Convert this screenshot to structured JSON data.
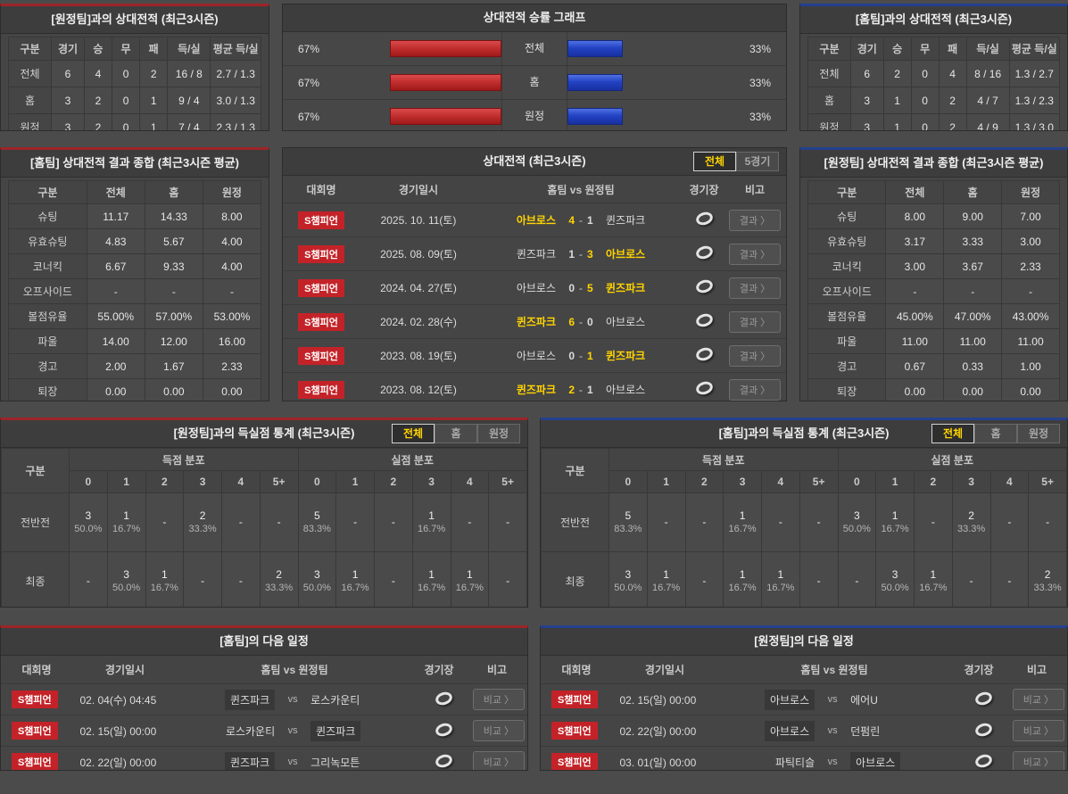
{
  "colors": {
    "accent_red": "#c22f2f",
    "accent_blue": "#2343c4",
    "badge_red": "#c32328",
    "highlight_yellow": "#ffd400"
  },
  "h2h_vs_away": {
    "title": "[원정팀]과의 상대전적 (최근3시즌)",
    "columns": [
      "구분",
      "경기",
      "승",
      "무",
      "패",
      "득/실",
      "평균 득/실"
    ],
    "rows": [
      {
        "label": "전체",
        "values": [
          "6",
          "4",
          "0",
          "2",
          "16 / 8",
          "2.7 / 1.3"
        ]
      },
      {
        "label": "홈",
        "values": [
          "3",
          "2",
          "0",
          "1",
          "9 / 4",
          "3.0 / 1.3"
        ]
      },
      {
        "label": "원정",
        "values": [
          "3",
          "2",
          "0",
          "1",
          "7 / 4",
          "2.3 / 1.3"
        ]
      }
    ]
  },
  "winrate": {
    "title": "상대전적 승률 그래프",
    "rows": [
      {
        "label": "전체",
        "left_pct": "67%",
        "right_pct": "33%",
        "left_width": 67,
        "right_width": 33
      },
      {
        "label": "홈",
        "left_pct": "67%",
        "right_pct": "33%",
        "left_width": 67,
        "right_width": 33
      },
      {
        "label": "원정",
        "left_pct": "67%",
        "right_pct": "33%",
        "left_width": 67,
        "right_width": 33
      }
    ]
  },
  "h2h_vs_home": {
    "title": "[홈팀]과의 상대전적 (최근3시즌)",
    "columns": [
      "구분",
      "경기",
      "승",
      "무",
      "패",
      "득/실",
      "평균 득/실"
    ],
    "rows": [
      {
        "label": "전체",
        "values": [
          "6",
          "2",
          "0",
          "4",
          "8 / 16",
          "1.3 / 2.7"
        ]
      },
      {
        "label": "홈",
        "values": [
          "3",
          "1",
          "0",
          "2",
          "4 / 7",
          "1.3 / 2.3"
        ]
      },
      {
        "label": "원정",
        "values": [
          "3",
          "1",
          "0",
          "2",
          "4 / 9",
          "1.3 / 3.0"
        ]
      }
    ]
  },
  "home_summary": {
    "title": "[홈팀] 상대전적 결과 종합 (최근3시즌 평균)",
    "columns": [
      "구분",
      "전체",
      "홈",
      "원정"
    ],
    "rows": [
      {
        "label": "슈팅",
        "values": [
          "11.17",
          "14.33",
          "8.00"
        ]
      },
      {
        "label": "유효슈팅",
        "values": [
          "4.83",
          "5.67",
          "4.00"
        ]
      },
      {
        "label": "코너킥",
        "values": [
          "6.67",
          "9.33",
          "4.00"
        ]
      },
      {
        "label": "오프사이드",
        "values": [
          "-",
          "-",
          "-"
        ]
      },
      {
        "label": "볼점유율",
        "values": [
          "55.00%",
          "57.00%",
          "53.00%"
        ]
      },
      {
        "label": "파울",
        "values": [
          "14.00",
          "12.00",
          "16.00"
        ]
      },
      {
        "label": "경고",
        "values": [
          "2.00",
          "1.67",
          "2.33"
        ]
      },
      {
        "label": "퇴장",
        "values": [
          "0.00",
          "0.00",
          "0.00"
        ]
      }
    ]
  },
  "away_summary": {
    "title": "[원정팀] 상대전적 결과 종합 (최근3시즌 평균)",
    "columns": [
      "구분",
      "전체",
      "홈",
      "원정"
    ],
    "rows": [
      {
        "label": "슈팅",
        "values": [
          "8.00",
          "9.00",
          "7.00"
        ]
      },
      {
        "label": "유효슈팅",
        "values": [
          "3.17",
          "3.33",
          "3.00"
        ]
      },
      {
        "label": "코너킥",
        "values": [
          "3.00",
          "3.67",
          "2.33"
        ]
      },
      {
        "label": "오프사이드",
        "values": [
          "-",
          "-",
          "-"
        ]
      },
      {
        "label": "볼점유율",
        "values": [
          "45.00%",
          "47.00%",
          "43.00%"
        ]
      },
      {
        "label": "파울",
        "values": [
          "11.00",
          "11.00",
          "11.00"
        ]
      },
      {
        "label": "경고",
        "values": [
          "0.67",
          "0.33",
          "1.00"
        ]
      },
      {
        "label": "퇴장",
        "values": [
          "0.00",
          "0.00",
          "0.00"
        ]
      }
    ]
  },
  "matches": {
    "title": "상대전적 (최근3시즌)",
    "filters": [
      "전체",
      "5경기"
    ],
    "active_filter": "전체",
    "columns": {
      "league": "대회명",
      "datetime": "경기일시",
      "teams": "홈팀  vs  원정팀",
      "stadium": "경기장",
      "note": "비고"
    },
    "result_button": "결과 〉",
    "sep": "-",
    "rows": [
      {
        "league": "S챔피언",
        "date": "2025. 10. 11(토)",
        "home": "아브로스",
        "hs": "4",
        "as": "1",
        "away": "퀸즈파크",
        "winner": "home"
      },
      {
        "league": "S챔피언",
        "date": "2025. 08. 09(토)",
        "home": "퀸즈파크",
        "hs": "1",
        "as": "3",
        "away": "아브로스",
        "winner": "away"
      },
      {
        "league": "S챔피언",
        "date": "2024. 04. 27(토)",
        "home": "아브로스",
        "hs": "0",
        "as": "5",
        "away": "퀸즈파크",
        "winner": "away"
      },
      {
        "league": "S챔피언",
        "date": "2024. 02. 28(수)",
        "home": "퀸즈파크",
        "hs": "6",
        "as": "0",
        "away": "아브로스",
        "winner": "home"
      },
      {
        "league": "S챔피언",
        "date": "2023. 08. 19(토)",
        "home": "아브로스",
        "hs": "0",
        "as": "1",
        "away": "퀸즈파크",
        "winner": "away"
      },
      {
        "league": "S챔피언",
        "date": "2023. 08. 12(토)",
        "home": "퀸즈파크",
        "hs": "2",
        "as": "1",
        "away": "아브로스",
        "winner": "home"
      }
    ]
  },
  "goals_vs_away": {
    "title": "[원정팀]과의 득실점 통계 (최근3시즌)",
    "filters": [
      "전체",
      "홈",
      "원정"
    ],
    "active_filter": "전체",
    "row_header": "구분",
    "group_scored": "득점 분포",
    "group_conceded": "실점 분포",
    "bins": [
      "0",
      "1",
      "2",
      "3",
      "4",
      "5+"
    ],
    "rows": [
      {
        "label": "전반전",
        "scored": [
          [
            "3",
            "50.0%"
          ],
          [
            "1",
            "16.7%"
          ],
          [
            "-",
            ""
          ],
          [
            "2",
            "33.3%"
          ],
          [
            "-",
            ""
          ],
          [
            "-",
            ""
          ]
        ],
        "conceded": [
          [
            "5",
            "83.3%"
          ],
          [
            "-",
            ""
          ],
          [
            "-",
            ""
          ],
          [
            "1",
            "16.7%"
          ],
          [
            "-",
            ""
          ],
          [
            "-",
            ""
          ]
        ]
      },
      {
        "label": "최종",
        "scored": [
          [
            "-",
            ""
          ],
          [
            "3",
            "50.0%"
          ],
          [
            "1",
            "16.7%"
          ],
          [
            "-",
            ""
          ],
          [
            "-",
            ""
          ],
          [
            "2",
            "33.3%"
          ]
        ],
        "conceded": [
          [
            "3",
            "50.0%"
          ],
          [
            "1",
            "16.7%"
          ],
          [
            "-",
            ""
          ],
          [
            "1",
            "16.7%"
          ],
          [
            "1",
            "16.7%"
          ],
          [
            "-",
            ""
          ]
        ]
      }
    ]
  },
  "goals_vs_home": {
    "title": "[홈팀]과의 득실점 통계 (최근3시즌)",
    "filters": [
      "전체",
      "홈",
      "원정"
    ],
    "active_filter": "전체",
    "row_header": "구분",
    "group_scored": "득점 분포",
    "group_conceded": "실점 분포",
    "bins": [
      "0",
      "1",
      "2",
      "3",
      "4",
      "5+"
    ],
    "rows": [
      {
        "label": "전반전",
        "scored": [
          [
            "5",
            "83.3%"
          ],
          [
            "-",
            ""
          ],
          [
            "-",
            ""
          ],
          [
            "1",
            "16.7%"
          ],
          [
            "-",
            ""
          ],
          [
            "-",
            ""
          ]
        ],
        "conceded": [
          [
            "3",
            "50.0%"
          ],
          [
            "1",
            "16.7%"
          ],
          [
            "-",
            ""
          ],
          [
            "2",
            "33.3%"
          ],
          [
            "-",
            ""
          ],
          [
            "-",
            ""
          ]
        ]
      },
      {
        "label": "최종",
        "scored": [
          [
            "3",
            "50.0%"
          ],
          [
            "1",
            "16.7%"
          ],
          [
            "-",
            ""
          ],
          [
            "1",
            "16.7%"
          ],
          [
            "1",
            "16.7%"
          ],
          [
            "-",
            ""
          ]
        ],
        "conceded": [
          [
            "-",
            ""
          ],
          [
            "3",
            "50.0%"
          ],
          [
            "1",
            "16.7%"
          ],
          [
            "-",
            ""
          ],
          [
            "-",
            ""
          ],
          [
            "2",
            "33.3%"
          ]
        ]
      }
    ]
  },
  "home_schedule": {
    "title": "[홈팀]의 다음 일정",
    "columns": {
      "league": "대회명",
      "datetime": "경기일시",
      "teams": "홈팀  vs  원정팀",
      "stadium": "경기장",
      "note": "비고"
    },
    "vs_label": "vs",
    "compare_button": "비교 〉",
    "rows": [
      {
        "league": "S챔피언",
        "date": "02. 04(수) 04:45",
        "home": "퀸즈파크",
        "away": "로스카운티",
        "highlight": "home"
      },
      {
        "league": "S챔피언",
        "date": "02. 15(일) 00:00",
        "home": "로스카운티",
        "away": "퀸즈파크",
        "highlight": "away"
      },
      {
        "league": "S챔피언",
        "date": "02. 22(일) 00:00",
        "home": "퀸즈파크",
        "away": "그리녹모튼",
        "highlight": "home"
      }
    ]
  },
  "away_schedule": {
    "title": "[원정팀]의 다음 일정",
    "columns": {
      "league": "대회명",
      "datetime": "경기일시",
      "teams": "홈팀  vs  원정팀",
      "stadium": "경기장",
      "note": "비고"
    },
    "vs_label": "vs",
    "compare_button": "비교 〉",
    "rows": [
      {
        "league": "S챔피언",
        "date": "02. 15(일) 00:00",
        "home": "아브로스",
        "away": "에어U",
        "highlight": "home"
      },
      {
        "league": "S챔피언",
        "date": "02. 22(일) 00:00",
        "home": "아브로스",
        "away": "던펌린",
        "highlight": "home"
      },
      {
        "league": "S챔피언",
        "date": "03. 01(일) 00:00",
        "home": "파틱티슬",
        "away": "아브로스",
        "highlight": "away"
      }
    ]
  }
}
